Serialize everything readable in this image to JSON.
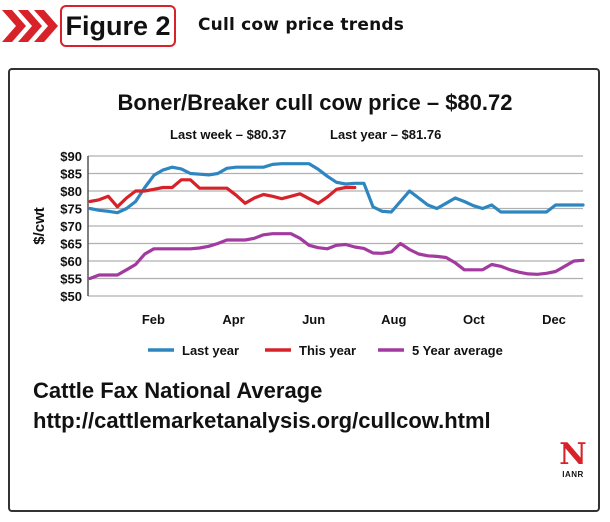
{
  "header": {
    "badge": "Figure 2",
    "caption": "Cull cow price trends"
  },
  "source": {
    "name": "Cattle Fax National Average",
    "url": "http://cattlemarketanalysis.org/cullcow.html"
  },
  "logo": {
    "letter": "N",
    "text": "IANR"
  },
  "colors": {
    "accent": "#d8222a",
    "last_year": "#2e86c1",
    "this_year": "#d8222a",
    "five_year": "#a23aa0",
    "grid": "#b0b0b0"
  },
  "chart_data": {
    "type": "line",
    "title": "Boner/Breaker cull cow price – $80.72",
    "subtitle_left": "Last week – $80.37",
    "subtitle_right": "Last year – $81.76",
    "ylabel": "$/cwt",
    "xlabel": "",
    "ylim": [
      50,
      90
    ],
    "yticks": [
      "$90",
      "$85",
      "$80",
      "$75",
      "$70",
      "$65",
      "$60",
      "$55",
      "$50"
    ],
    "x_week_range": [
      1,
      52
    ],
    "x_tick_labels": [
      {
        "label": "Feb",
        "week": 7
      },
      {
        "label": "Apr",
        "week": 16
      },
      {
        "label": "Jun",
        "week": 25
      },
      {
        "label": "Aug",
        "week": 34
      },
      {
        "label": "Oct",
        "week": 43
      },
      {
        "label": "Dec",
        "week": 52
      }
    ],
    "grid": true,
    "legend": "bottom",
    "series": [
      {
        "name": "Last year",
        "color": "#2e86c1",
        "x": [
          1,
          2,
          3,
          4,
          5,
          6,
          7,
          8,
          9,
          10,
          11,
          12,
          13,
          14,
          15,
          16,
          17,
          18,
          19,
          20,
          21,
          22,
          23,
          24,
          25,
          26,
          27,
          28,
          29,
          30,
          31,
          32,
          33,
          34,
          35,
          36,
          37,
          38,
          39,
          40,
          41,
          42,
          43,
          44,
          45,
          46,
          47,
          48,
          49,
          50,
          51,
          52,
          53,
          54,
          55
        ],
        "values": [
          75,
          74.5,
          74.2,
          73.8,
          75,
          77,
          81,
          84.5,
          86,
          86.8,
          86.3,
          85,
          84.8,
          84.6,
          85,
          86.5,
          86.8,
          86.8,
          86.8,
          86.8,
          87.6,
          87.8,
          87.8,
          87.8,
          87.8,
          86.2,
          84.2,
          82.5,
          82,
          82.2,
          82.2,
          75.5,
          74.2,
          74,
          77,
          80,
          78,
          76,
          75,
          76.5,
          78,
          77,
          75.8,
          75,
          76,
          74,
          74,
          74,
          74,
          74,
          74,
          76,
          76,
          76,
          76
        ]
      },
      {
        "name": "This year",
        "color": "#d8222a",
        "x": [
          1,
          2,
          3,
          4,
          5,
          6,
          7,
          8,
          9,
          10,
          11,
          12,
          13,
          14,
          15,
          16,
          17,
          18,
          19,
          20,
          21,
          22,
          23,
          24,
          25,
          26,
          27,
          28,
          29,
          30
        ],
        "values": [
          77,
          77.5,
          78.5,
          75.5,
          78,
          80,
          80,
          80.5,
          81,
          81,
          83.2,
          83.2,
          80.8,
          80.8,
          80.8,
          80.8,
          78.8,
          76.5,
          78,
          79,
          78.5,
          77.8,
          78.5,
          79.2,
          77.8,
          76.5,
          78.3,
          80.5,
          81,
          81
        ]
      },
      {
        "name": "5 Year average",
        "color": "#a23aa0",
        "x": [
          1,
          2,
          3,
          4,
          5,
          6,
          7,
          8,
          9,
          10,
          11,
          12,
          13,
          14,
          15,
          16,
          17,
          18,
          19,
          20,
          21,
          22,
          23,
          24,
          25,
          26,
          27,
          28,
          29,
          30,
          31,
          32,
          33,
          34,
          35,
          36,
          37,
          38,
          39,
          40,
          41,
          42,
          43,
          44,
          45,
          46,
          47,
          48,
          49,
          50,
          51,
          52,
          53,
          54,
          55
        ],
        "values": [
          55,
          56,
          56,
          56,
          57.5,
          59,
          62,
          63.5,
          63.5,
          63.5,
          63.5,
          63.5,
          63.7,
          64.2,
          65,
          66,
          66,
          66,
          66.5,
          67.5,
          67.8,
          67.8,
          67.8,
          66.5,
          64.5,
          63.8,
          63.5,
          64.5,
          64.7,
          64,
          63.6,
          62.3,
          62.2,
          62.6,
          65,
          63.3,
          62,
          61.5,
          61.3,
          61,
          59.5,
          57.5,
          57.5,
          57.5,
          59,
          58.5,
          57.5,
          56.8,
          56.3,
          56.2,
          56.5,
          57,
          58.5,
          60,
          60.2
        ]
      }
    ]
  }
}
